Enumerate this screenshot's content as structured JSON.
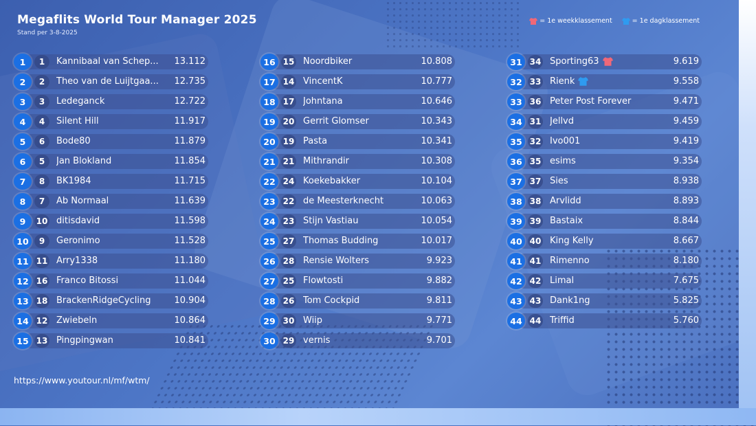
{
  "header": {
    "title": "Megaflits World Tour Manager 2025",
    "subtitle": "Stand per 3-8-2025"
  },
  "legend": {
    "week_label": "= 1e weekklassement",
    "day_label": "= 1e dagklassement",
    "week_color": "#f06878",
    "day_color": "#2f9bf0"
  },
  "columns": [
    [
      {
        "rank": "1",
        "prev": "1",
        "name": "Kannibaal van Schep...",
        "points": "13.112"
      },
      {
        "rank": "2",
        "prev": "2",
        "name": "Theo van de Luijtgaa...",
        "points": "12.735"
      },
      {
        "rank": "3",
        "prev": "3",
        "name": "Ledeganck",
        "points": "12.722"
      },
      {
        "rank": "4",
        "prev": "4",
        "name": "Silent Hill",
        "points": "11.917"
      },
      {
        "rank": "5",
        "prev": "6",
        "name": "Bode80",
        "points": "11.879"
      },
      {
        "rank": "6",
        "prev": "5",
        "name": "Jan Blokland",
        "points": "11.854"
      },
      {
        "rank": "7",
        "prev": "8",
        "name": "BK1984",
        "points": "11.715"
      },
      {
        "rank": "8",
        "prev": "7",
        "name": "Ab Normaal",
        "points": "11.639"
      },
      {
        "rank": "9",
        "prev": "10",
        "name": "ditisdavid",
        "points": "11.598"
      },
      {
        "rank": "10",
        "prev": "9",
        "name": "Geronimo",
        "points": "11.528"
      },
      {
        "rank": "11",
        "prev": "11",
        "name": "Arry1338",
        "points": "11.180"
      },
      {
        "rank": "12",
        "prev": "16",
        "name": "Franco Bitossi",
        "points": "11.044"
      },
      {
        "rank": "13",
        "prev": "18",
        "name": "BrackenRidgeCycling",
        "points": "10.904"
      },
      {
        "rank": "14",
        "prev": "12",
        "name": "Zwiebeln",
        "points": "10.864"
      },
      {
        "rank": "15",
        "prev": "13",
        "name": "Pingpingwan",
        "points": "10.841"
      }
    ],
    [
      {
        "rank": "16",
        "prev": "15",
        "name": "Noordbiker",
        "points": "10.808"
      },
      {
        "rank": "17",
        "prev": "14",
        "name": "VincentK",
        "points": "10.777"
      },
      {
        "rank": "18",
        "prev": "17",
        "name": "Johntana",
        "points": "10.646"
      },
      {
        "rank": "19",
        "prev": "20",
        "name": "Gerrit Glomser",
        "points": "10.343"
      },
      {
        "rank": "20",
        "prev": "19",
        "name": "Pasta",
        "points": "10.341"
      },
      {
        "rank": "21",
        "prev": "21",
        "name": "Mithrandir",
        "points": "10.308"
      },
      {
        "rank": "22",
        "prev": "24",
        "name": "Koekebakker",
        "points": "10.104"
      },
      {
        "rank": "23",
        "prev": "22",
        "name": "de Meesterknecht",
        "points": "10.063"
      },
      {
        "rank": "24",
        "prev": "23",
        "name": "Stijn Vastiau",
        "points": "10.054"
      },
      {
        "rank": "25",
        "prev": "27",
        "name": "Thomas Budding",
        "points": "10.017"
      },
      {
        "rank": "26",
        "prev": "28",
        "name": "Rensie Wolters",
        "points": "9.923"
      },
      {
        "rank": "27",
        "prev": "25",
        "name": "Flowtosti",
        "points": "9.882"
      },
      {
        "rank": "28",
        "prev": "26",
        "name": "Tom Cockpid",
        "points": "9.811"
      },
      {
        "rank": "29",
        "prev": "30",
        "name": "Wiip",
        "points": "9.771"
      },
      {
        "rank": "30",
        "prev": "29",
        "name": "vernis",
        "points": "9.701"
      }
    ],
    [
      {
        "rank": "31",
        "prev": "34",
        "name": "Sporting63",
        "points": "9.619",
        "jersey": "week"
      },
      {
        "rank": "32",
        "prev": "33",
        "name": "Rienk",
        "points": "9.558",
        "jersey": "day"
      },
      {
        "rank": "33",
        "prev": "36",
        "name": "Peter Post Forever",
        "points": "9.471"
      },
      {
        "rank": "34",
        "prev": "31",
        "name": "Jellvd",
        "points": "9.459"
      },
      {
        "rank": "35",
        "prev": "32",
        "name": "Ivo001",
        "points": "9.419"
      },
      {
        "rank": "36",
        "prev": "35",
        "name": "esims",
        "points": "9.354"
      },
      {
        "rank": "37",
        "prev": "37",
        "name": "Sies",
        "points": "8.938"
      },
      {
        "rank": "38",
        "prev": "38",
        "name": "Arvlidd",
        "points": "8.893"
      },
      {
        "rank": "39",
        "prev": "39",
        "name": "Bastaix",
        "points": "8.844"
      },
      {
        "rank": "40",
        "prev": "40",
        "name": "King Kelly",
        "points": "8.667"
      },
      {
        "rank": "41",
        "prev": "41",
        "name": "Rimenno",
        "points": "8.180"
      },
      {
        "rank": "42",
        "prev": "42",
        "name": "Limal",
        "points": "7.675"
      },
      {
        "rank": "43",
        "prev": "43",
        "name": "Dank1ng",
        "points": "5.825"
      },
      {
        "rank": "44",
        "prev": "44",
        "name": "Triffid",
        "points": "5.760"
      }
    ]
  ],
  "footer": {
    "url": "https://www.youtour.nl/mf/wtm/"
  }
}
